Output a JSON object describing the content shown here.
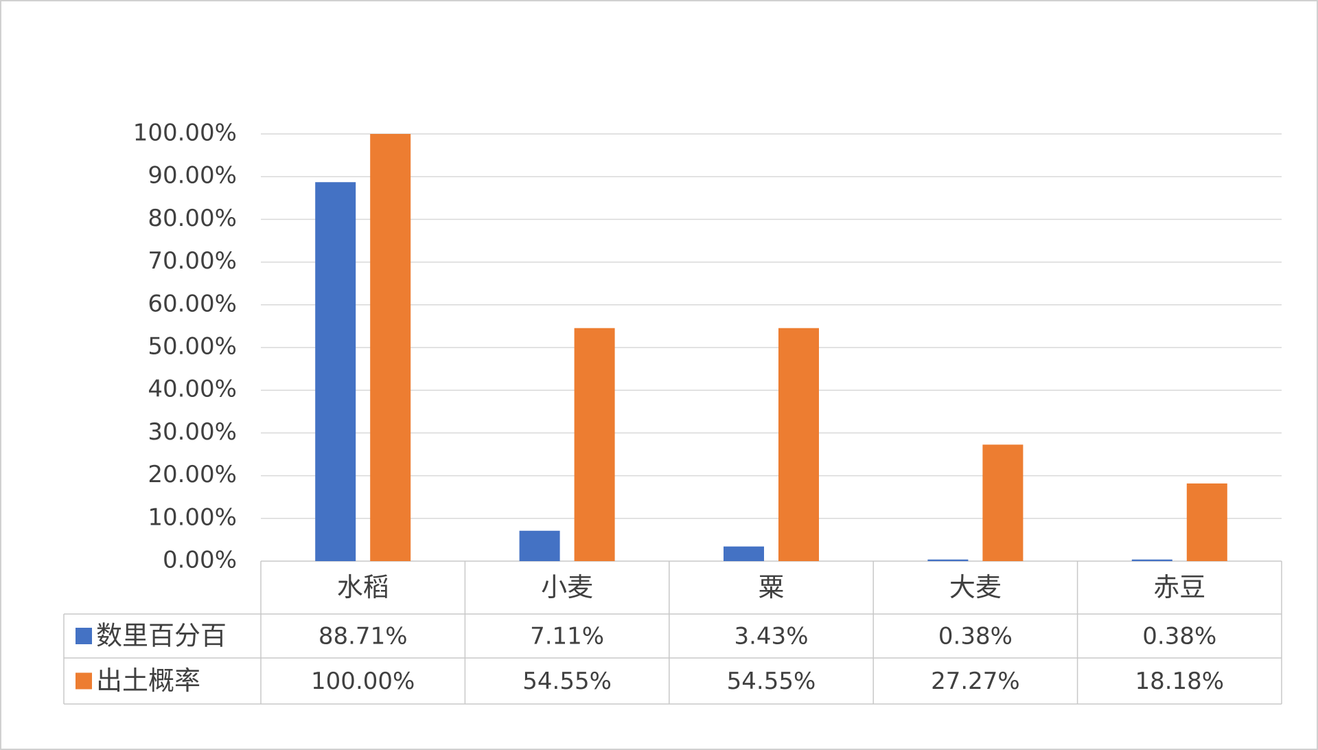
{
  "chart_data": {
    "type": "bar",
    "categories": [
      "水稻",
      "小麦",
      "粟",
      "大麦",
      "赤豆"
    ],
    "series": [
      {
        "name": "数里百分百",
        "color": "#4472c4",
        "values": [
          88.71,
          7.11,
          3.43,
          0.38,
          0.38
        ],
        "value_labels": [
          "88.71%",
          "7.11%",
          "3.43%",
          "0.38%",
          "0.38%"
        ]
      },
      {
        "name": "出土概率",
        "color": "#ed7d31",
        "values": [
          100,
          54.55,
          54.55,
          27.27,
          18.18
        ],
        "value_labels": [
          "100.00%",
          "54.55%",
          "54.55%",
          "27.27%",
          "18.18%"
        ]
      }
    ],
    "ylim": [
      0,
      100
    ],
    "yticks": [
      {
        "value": 0,
        "label": "0.00%"
      },
      {
        "value": 10,
        "label": "10.00%"
      },
      {
        "value": 20,
        "label": "20.00%"
      },
      {
        "value": 30,
        "label": "30.00%"
      },
      {
        "value": 40,
        "label": "40.00%"
      },
      {
        "value": 50,
        "label": "50.00%"
      },
      {
        "value": 60,
        "label": "60.00%"
      },
      {
        "value": 70,
        "label": "70.00%"
      },
      {
        "value": 80,
        "label": "80.00%"
      },
      {
        "value": 90,
        "label": "90.00%"
      },
      {
        "value": 100,
        "label": "100.00%"
      }
    ],
    "grid": true
  }
}
